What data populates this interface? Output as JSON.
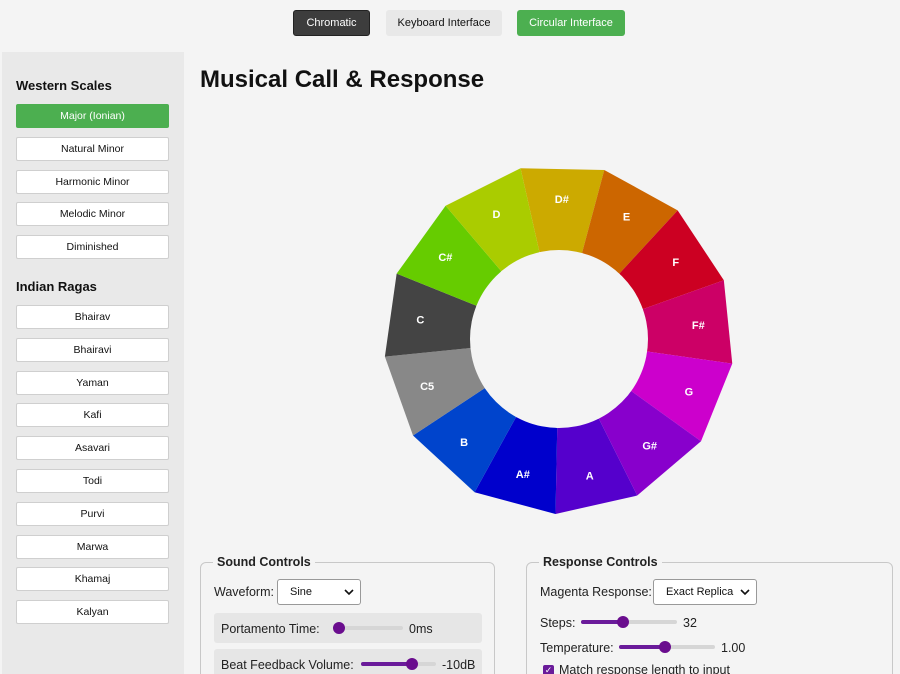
{
  "tabs": {
    "chromatic": "Chromatic",
    "keyboard": "Keyboard Interface",
    "circular": "Circular Interface"
  },
  "sidebar": {
    "western_heading": "Western Scales",
    "western": [
      "Major (Ionian)",
      "Natural Minor",
      "Harmonic Minor",
      "Melodic Minor",
      "Diminished"
    ],
    "active_scale": "Major (Ionian)",
    "indian_heading": "Indian Ragas",
    "ragas": [
      "Bhairav",
      "Bhairavi",
      "Yaman",
      "Kafi",
      "Asavari",
      "Todi",
      "Purvi",
      "Marwa",
      "Khamaj",
      "Kalyan"
    ]
  },
  "title": "Musical Call & Response",
  "wheel": {
    "segments": [
      {
        "label": "D#",
        "color": "#ccaa00"
      },
      {
        "label": "E",
        "color": "#cc6600"
      },
      {
        "label": "F",
        "color": "#cc0022"
      },
      {
        "label": "F#",
        "color": "#cc0066"
      },
      {
        "label": "G",
        "color": "#cc00cc"
      },
      {
        "label": "G#",
        "color": "#8800cc"
      },
      {
        "label": "A",
        "color": "#5500cc"
      },
      {
        "label": "A#",
        "color": "#0000cc"
      },
      {
        "label": "B",
        "color": "#0044cc"
      },
      {
        "label": "C5",
        "color": "#888888"
      },
      {
        "label": "C",
        "color": "#444444"
      },
      {
        "label": "C#",
        "color": "#66cc00"
      },
      {
        "label": "D",
        "color": "#aacc00"
      }
    ]
  },
  "sound_controls": {
    "legend": "Sound Controls",
    "waveform_label": "Waveform:",
    "waveform_value": "Sine",
    "portamento_label": "Portamento Time:",
    "portamento_value": "0ms",
    "portamento_level": 0,
    "beat_label": "Beat Feedback Volume:",
    "beat_value": "-10dB",
    "beat_level": 0.72
  },
  "response_controls": {
    "legend": "Response Controls",
    "magenta_label": "Magenta Response:",
    "magenta_value": "Exact Replica",
    "steps_label": "Steps:",
    "steps_value": "32",
    "steps_level": 0.43,
    "temperature_label": "Temperature:",
    "temperature_value": "1.00",
    "temperature_level": 0.48,
    "match_label": "Match response length to input",
    "match_checked": true
  }
}
